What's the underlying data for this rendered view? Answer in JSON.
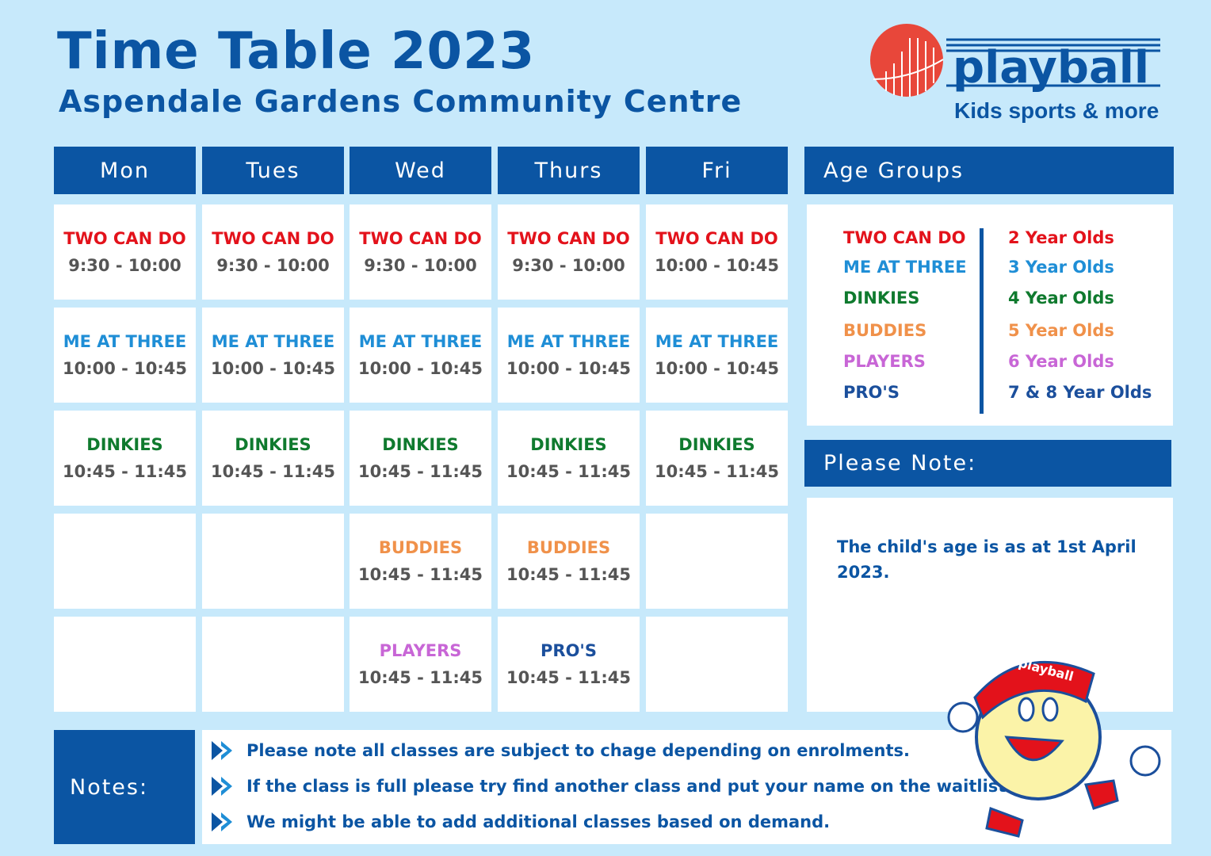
{
  "header": {
    "title": "Time Table 2023",
    "subtitle": "Aspendale Gardens Community Centre"
  },
  "logo": {
    "text": "playball",
    "tagline": "Kids sports & more",
    "colors": {
      "ball": "#e8473a",
      "text": "#0b55a3"
    }
  },
  "colors": {
    "background": "#c7e9fb",
    "header_blue": "#0b55a3",
    "TWO CAN DO": "#e3121b",
    "ME AT THREE": "#1f8ed6",
    "DINKIES": "#0f7a2e",
    "BUDDIES": "#f0914a",
    "PLAYERS": "#c866d6",
    "PRO'S": "#1b4f9c"
  },
  "days": [
    "Mon",
    "Tues",
    "Wed",
    "Thurs",
    "Fri"
  ],
  "schedule": [
    [
      {
        "name": "TWO CAN DO",
        "time": "9:30 - 10:00"
      },
      {
        "name": "TWO CAN DO",
        "time": "9:30 - 10:00"
      },
      {
        "name": "TWO CAN DO",
        "time": "9:30 - 10:00"
      },
      {
        "name": "TWO CAN DO",
        "time": "9:30 - 10:00"
      },
      {
        "name": "TWO CAN DO",
        "time": "10:00 - 10:45"
      }
    ],
    [
      {
        "name": "ME AT THREE",
        "time": "10:00 - 10:45"
      },
      {
        "name": "ME AT THREE",
        "time": "10:00 - 10:45"
      },
      {
        "name": "ME AT THREE",
        "time": "10:00 - 10:45"
      },
      {
        "name": "ME AT THREE",
        "time": "10:00 - 10:45"
      },
      {
        "name": "ME AT THREE",
        "time": "10:00 - 10:45"
      }
    ],
    [
      {
        "name": "DINKIES",
        "time": "10:45 - 11:45"
      },
      {
        "name": "DINKIES",
        "time": "10:45 - 11:45"
      },
      {
        "name": "DINKIES",
        "time": "10:45 - 11:45"
      },
      {
        "name": "DINKIES",
        "time": "10:45 - 11:45"
      },
      {
        "name": "DINKIES",
        "time": "10:45 - 11:45"
      }
    ],
    [
      null,
      null,
      {
        "name": "BUDDIES",
        "time": "10:45 - 11:45"
      },
      {
        "name": "BUDDIES",
        "time": "10:45 - 11:45"
      },
      null
    ],
    [
      null,
      null,
      {
        "name": "PLAYERS",
        "time": "10:45 - 11:45"
      },
      {
        "name": "PRO'S",
        "time": "10:45 - 11:45"
      },
      null
    ]
  ],
  "age_groups": {
    "title": "Age Groups",
    "items": [
      {
        "name": "TWO CAN DO",
        "age": "2 Year Olds"
      },
      {
        "name": "ME AT THREE",
        "age": "3 Year Olds"
      },
      {
        "name": "DINKIES",
        "age": "4 Year Olds"
      },
      {
        "name": "BUDDIES",
        "age": "5 Year Olds"
      },
      {
        "name": "PLAYERS",
        "age": "6 Year Olds"
      },
      {
        "name": "PRO'S",
        "age": "7 & 8 Year Olds"
      }
    ]
  },
  "please_note": {
    "title": "Please Note:",
    "text": "The child's age is as at 1st April 2023."
  },
  "notes": {
    "title": "Notes:",
    "items": [
      "Please note all classes are subject to chage depending on enrolments.",
      "If the class is full please try find another class and put your name on the waitlist.",
      "We might be able to add additional classes based on demand."
    ]
  },
  "mascot": {
    "cap_text": "playball"
  }
}
